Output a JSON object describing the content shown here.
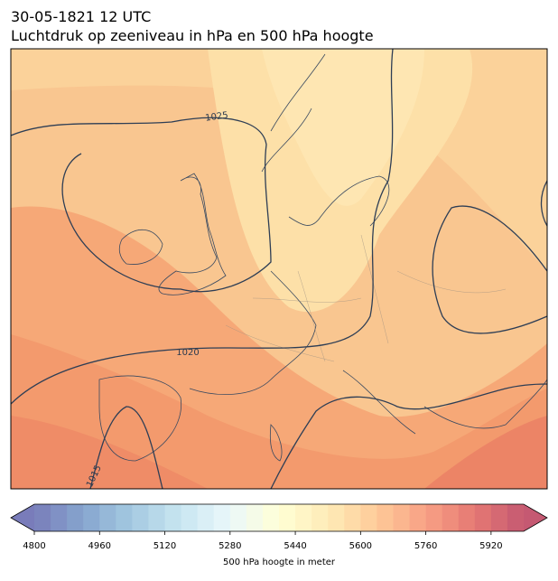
{
  "header": {
    "date": "30-05-1821 12 UTC",
    "title": "Luchtdruk op zeeniveau in hPa en 500 hPa hoogte"
  },
  "map": {
    "contour_labels": [
      "1025",
      "1020",
      "1015"
    ]
  },
  "colorbar": {
    "clim": [
      4800,
      6000
    ],
    "level_interval": 40,
    "ticks": [
      4800,
      4960,
      5120,
      5280,
      5440,
      5600,
      5760,
      5920
    ],
    "label": "500 hPa hoogte in meter"
  }
}
